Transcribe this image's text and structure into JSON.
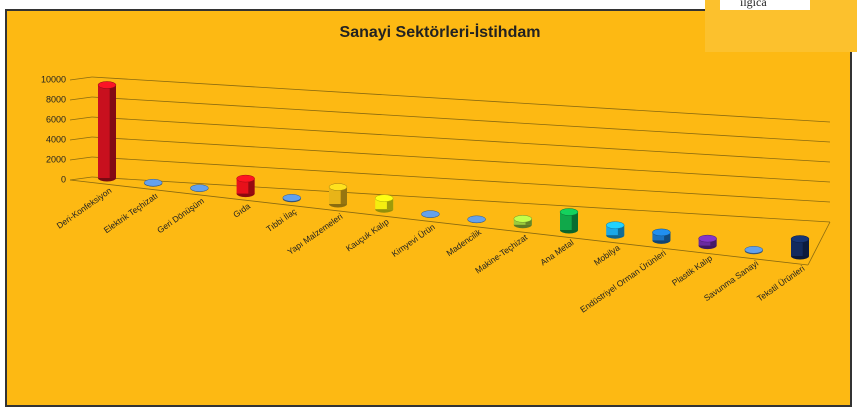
{
  "chart_data": {
    "type": "bar3d",
    "title": "Sanayi Sektörleri-İstihdam",
    "corner_text": "ilgıca",
    "categories": [
      "Deri-Konfeksiyon",
      "Elektrik Teçhizatı",
      "Geri Dönüşüm",
      "Gıda",
      "Tıbbi İlaç",
      "Yapı Malzemeleri",
      "Kauçuk Kalıp",
      "Kimyevi Ürün",
      "Madencilik",
      "Makine-Teçhizat",
      "Ana Metal",
      "Mobilya",
      "Endüstriyel Orman Ürünleri",
      "Plastik Kalıp",
      "Savunma Sanayi",
      "Tekstil Ürünleri"
    ],
    "values": [
      9300,
      50,
      30,
      1500,
      100,
      1700,
      1100,
      30,
      30,
      600,
      1800,
      1000,
      800,
      700,
      100,
      1700
    ],
    "colors": [
      "#c8101e",
      "#4f81bd",
      "#4f81bd",
      "#e8101a",
      "#4f81bd",
      "#e8b418",
      "#f4ee10",
      "#4f81bd",
      "#4f81bd",
      "#9ccc3c",
      "#10a84a",
      "#1aa8e8",
      "#1a72c0",
      "#6a2aa0",
      "#4f81bd",
      "#122a5e"
    ],
    "ylim": [
      0,
      10000
    ],
    "yticks": [
      0,
      2000,
      4000,
      6000,
      8000,
      10000
    ],
    "grid": true
  }
}
